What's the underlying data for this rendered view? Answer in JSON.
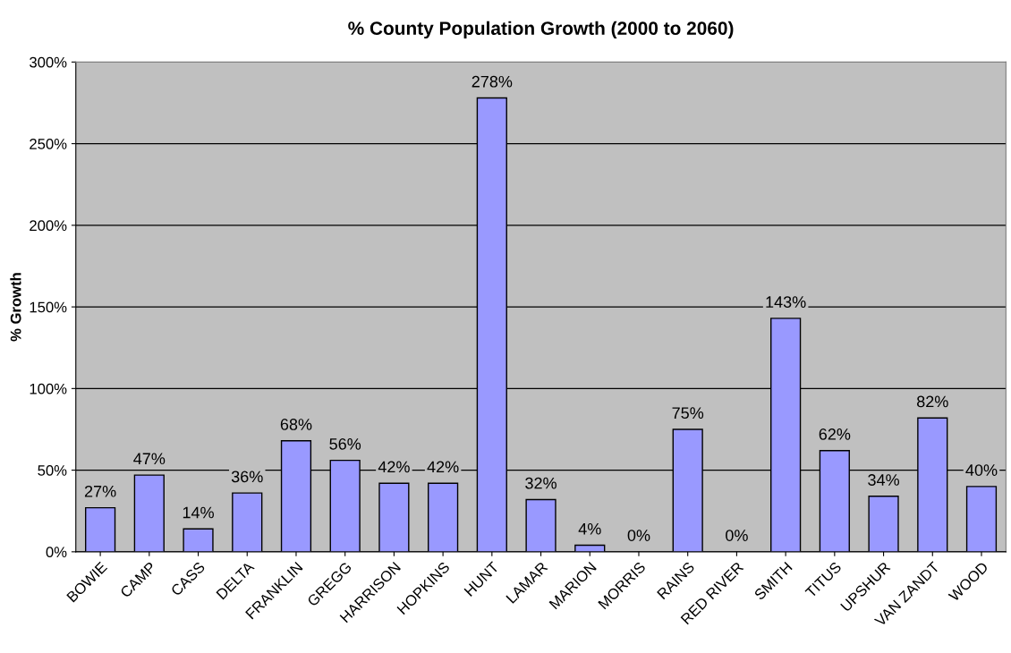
{
  "chart_data": {
    "type": "bar",
    "title": "% County Population Growth (2000 to 2060)",
    "ylabel": "% Growth",
    "categories": [
      "BOWIE",
      "CAMP",
      "CASS",
      "DELTA",
      "FRANKLIN",
      "GREGG",
      "HARRISON",
      "HOPKINS",
      "HUNT",
      "LAMAR",
      "MARION",
      "MORRIS",
      "RAINS",
      "RED RIVER",
      "SMITH",
      "TITUS",
      "UPSHUR",
      "VAN ZANDT",
      "WOOD"
    ],
    "values": [
      27,
      47,
      14,
      36,
      68,
      56,
      42,
      42,
      278,
      32,
      4,
      0,
      75,
      0,
      143,
      62,
      34,
      82,
      40
    ],
    "value_labels": [
      "27%",
      "47%",
      "14%",
      "36%",
      "68%",
      "56%",
      "42%",
      "42%",
      "278%",
      "32%",
      "4%",
      "0%",
      "75%",
      "0%",
      "143%",
      "62%",
      "34%",
      "82%",
      "40%"
    ],
    "color": "#9999ff",
    "ylim": [
      0,
      300
    ],
    "yticks": [
      {
        "value": 0,
        "label": "0%"
      },
      {
        "value": 50,
        "label": "50%"
      },
      {
        "value": 100,
        "label": "100%"
      },
      {
        "value": 150,
        "label": "150%"
      },
      {
        "value": 200,
        "label": "200%"
      },
      {
        "value": 250,
        "label": "250%"
      },
      {
        "value": 300,
        "label": "300%"
      }
    ],
    "grid": "y",
    "legend": false
  }
}
